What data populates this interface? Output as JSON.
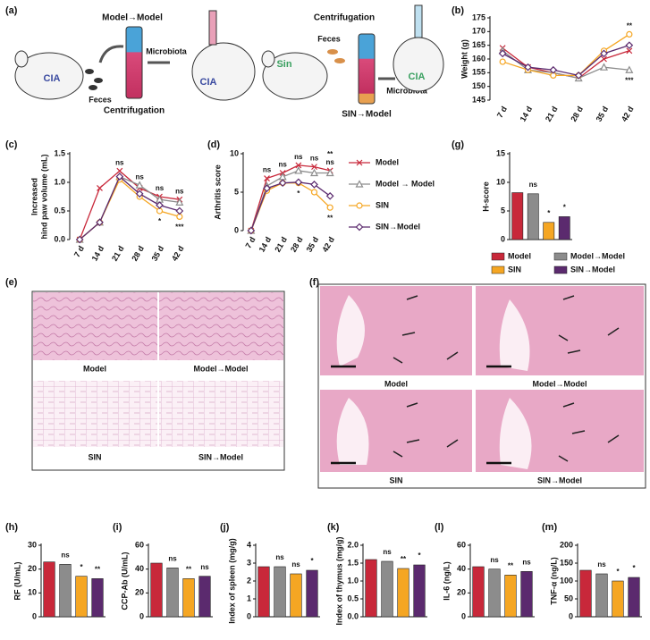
{
  "schematic": {
    "panel": "(a)",
    "left_title": "Model→Model",
    "left_feces": "Feces",
    "left_microbiota": "Microbiota",
    "left_centrifugation": "Centrifugation",
    "left_donor": "CIA",
    "left_recipient": "CIA",
    "right_title": "Centrifugation",
    "right_feces": "Feces",
    "right_microbiota": "Microbiota",
    "right_centrifugation": "SIN→Model",
    "right_donor": "Sin",
    "right_recipient": "CIA"
  },
  "images": {
    "e": {
      "panel": "(e)",
      "labels": [
        "Model",
        "Model→Model",
        "SIN",
        "SIN→Model"
      ]
    },
    "f": {
      "panel": "(f)",
      "labels": [
        "Model",
        "Model→Model",
        "SIN",
        "SIN→Model"
      ]
    }
  },
  "chart_data": [
    {
      "type": "line",
      "panel": "(b)",
      "ylabel": "Weight (g)",
      "categories": [
        "7 d",
        "14 d",
        "21 d",
        "28 d",
        "35 d",
        "42 d"
      ],
      "ylim": [
        145,
        175
      ],
      "yticks": [
        145,
        150,
        155,
        160,
        165,
        170,
        175
      ],
      "series": [
        {
          "name": "Model",
          "color": "#c8283a",
          "marker": "x",
          "values": [
            164,
            157,
            155,
            153,
            160,
            163
          ],
          "annotations": [
            null,
            null,
            null,
            null,
            null,
            null
          ]
        },
        {
          "name": "Model→Model",
          "color": "#8c8c8c",
          "marker": "triangle",
          "values": [
            163,
            156,
            155,
            153,
            157,
            156
          ],
          "annotations": [
            null,
            null,
            null,
            null,
            null,
            "***"
          ]
        },
        {
          "name": "SIN",
          "color": "#f5a623",
          "marker": "circle",
          "values": [
            159,
            156,
            154,
            154,
            163,
            169
          ],
          "annotations": [
            null,
            null,
            null,
            null,
            null,
            "**"
          ]
        },
        {
          "name": "SIN→Model",
          "color": "#5b2a6e",
          "marker": "diamond",
          "values": [
            162,
            157,
            156,
            154,
            162,
            165
          ],
          "annotations": [
            null,
            null,
            null,
            null,
            null,
            null
          ]
        }
      ]
    },
    {
      "type": "line",
      "panel": "(c)",
      "ylabel": [
        "Increased",
        "hind paw volume (mL)"
      ],
      "categories": [
        "7 d",
        "14 d",
        "21 d",
        "28 d",
        "35 d",
        "42 d"
      ],
      "ylim": [
        0,
        1.5
      ],
      "yticks": [
        {
          "value": 0,
          "label": "0.0"
        },
        0.5,
        {
          "value": 1,
          "label": "1.0"
        },
        1.5
      ],
      "series": [
        {
          "name": "Model",
          "color": "#c8283a",
          "marker": "x",
          "values": [
            0,
            0.9,
            1.2,
            0.9,
            0.75,
            0.7
          ],
          "annotations": [
            null,
            null,
            null,
            null,
            null,
            null
          ]
        },
        {
          "name": "Model→Model",
          "color": "#8c8c8c",
          "marker": "triangle",
          "values": [
            0,
            0.3,
            1.1,
            0.95,
            0.7,
            0.65
          ],
          "annotations": [
            null,
            null,
            "ns",
            "ns",
            "ns",
            "ns"
          ]
        },
        {
          "name": "SIN",
          "color": "#f5a623",
          "marker": "circle",
          "values": [
            0,
            0.3,
            1.05,
            0.75,
            0.5,
            0.4
          ],
          "annotations": [
            null,
            null,
            null,
            null,
            "*",
            "***"
          ]
        },
        {
          "name": "SIN→Model",
          "color": "#5b2a6e",
          "marker": "diamond",
          "values": [
            0,
            0.3,
            1.1,
            0.8,
            0.6,
            0.5
          ],
          "annotations": [
            null,
            null,
            null,
            null,
            null,
            null
          ]
        }
      ]
    },
    {
      "type": "line",
      "panel": "(d)",
      "ylabel": "Arthritis score",
      "categories": [
        "7 d",
        "14 d",
        "21 d",
        "28 d",
        "35 d",
        "42 d"
      ],
      "ylim": [
        0,
        10
      ],
      "yticks": [
        0,
        5,
        10
      ],
      "legend": true,
      "series": [
        {
          "name": "Model",
          "color": "#c8283a",
          "marker": "x",
          "values": [
            0,
            6.8,
            7.5,
            8.5,
            8.3,
            7.8
          ],
          "annotations": [
            null,
            null,
            null,
            null,
            null,
            null
          ]
        },
        {
          "name": "Model → Model",
          "color": "#8c8c8c",
          "marker": "triangle",
          "values": [
            0,
            5.8,
            7,
            7.8,
            7.5,
            7.5
          ],
          "annotations": [
            null,
            "ns",
            "ns",
            "ns",
            "ns",
            "ns"
          ]
        },
        {
          "name": "SIN",
          "color": "#f5a623",
          "marker": "circle",
          "values": [
            0,
            5.2,
            6.2,
            6.2,
            5,
            3
          ],
          "annotations": [
            null,
            null,
            null,
            "*",
            null,
            "**"
          ]
        },
        {
          "name": "SIN→Model",
          "color": "#5b2a6e",
          "marker": "diamond",
          "values": [
            0,
            5.5,
            6.2,
            6.3,
            6,
            4.5
          ],
          "annotations": [
            null,
            null,
            null,
            null,
            null,
            "**"
          ]
        }
      ]
    },
    {
      "type": "bar",
      "panel": "(g)",
      "ylabel": "H-score",
      "legend": true,
      "categories": [
        "Model",
        "Model→Model",
        "SIN",
        "SIN→Model"
      ],
      "colors": [
        "#c8283a",
        "#8c8c8c",
        "#f5a623",
        "#5b2a6e"
      ],
      "values": [
        8.2,
        8,
        3,
        4
      ],
      "annotations": [
        null,
        "ns",
        "*",
        "*"
      ],
      "ylim": [
        0,
        15
      ],
      "yticks": [
        0,
        5,
        10,
        15
      ]
    },
    {
      "type": "bar",
      "panel": "(h)",
      "ylabel": "RF (U/mL)",
      "categories": [
        "Model",
        "Model→Model",
        "SIN",
        "SIN→Model"
      ],
      "colors": [
        "#c8283a",
        "#8c8c8c",
        "#f5a623",
        "#5b2a6e"
      ],
      "values": [
        23,
        22,
        17,
        16
      ],
      "annotations": [
        null,
        "ns",
        "*",
        "**"
      ],
      "ylim": [
        0,
        30
      ],
      "yticks": [
        0,
        10,
        20,
        30
      ]
    },
    {
      "type": "bar",
      "panel": "(i)",
      "ylabel": "CCP-Ab (U/mL)",
      "categories": [
        "Model",
        "Model→Model",
        "SIN",
        "SIN→Model"
      ],
      "colors": [
        "#c8283a",
        "#8c8c8c",
        "#f5a623",
        "#5b2a6e"
      ],
      "values": [
        45,
        41,
        32,
        34
      ],
      "annotations": [
        null,
        "ns",
        "**",
        "ns"
      ],
      "ylim": [
        0,
        60
      ],
      "yticks": [
        0,
        20,
        40,
        60
      ]
    },
    {
      "type": "bar",
      "panel": "(j)",
      "ylabel": "Index of spleen (mg/g)",
      "categories": [
        "Model",
        "Model→Model",
        "SIN",
        "SIN→Model"
      ],
      "colors": [
        "#c8283a",
        "#8c8c8c",
        "#f5a623",
        "#5b2a6e"
      ],
      "values": [
        2.8,
        2.8,
        2.4,
        2.6
      ],
      "annotations": [
        null,
        "ns",
        "ns",
        "*"
      ],
      "ylim": [
        0,
        4
      ],
      "yticks": [
        0,
        1,
        2,
        3,
        4
      ]
    },
    {
      "type": "bar",
      "panel": "(k)",
      "ylabel": "Index of thymus (mg/g)",
      "categories": [
        "Model",
        "Model→Model",
        "SIN",
        "SIN→Model"
      ],
      "colors": [
        "#c8283a",
        "#8c8c8c",
        "#f5a623",
        "#5b2a6e"
      ],
      "values": [
        1.6,
        1.55,
        1.35,
        1.45
      ],
      "annotations": [
        null,
        "ns",
        "**",
        "*"
      ],
      "ylim": [
        0,
        2
      ],
      "yticks": [
        {
          "value": 0,
          "label": "0.0"
        },
        0.5,
        {
          "value": 1,
          "label": "1.0"
        },
        1.5,
        {
          "value": 2,
          "label": "2.0"
        }
      ]
    },
    {
      "type": "bar",
      "panel": "(l)",
      "ylabel": "IL-6 (ng/L)",
      "categories": [
        "Model",
        "Model→Model",
        "SIN",
        "SIN→Model"
      ],
      "colors": [
        "#c8283a",
        "#8c8c8c",
        "#f5a623",
        "#5b2a6e"
      ],
      "values": [
        42,
        40,
        35,
        38
      ],
      "annotations": [
        null,
        "ns",
        "**",
        "ns"
      ],
      "ylim": [
        0,
        60
      ],
      "yticks": [
        0,
        20,
        40,
        60
      ]
    },
    {
      "type": "bar",
      "panel": "(m)",
      "ylabel": "TNF-α (ng/L)",
      "categories": [
        "Model",
        "Model→Model",
        "SIN",
        "SIN→Model"
      ],
      "colors": [
        "#c8283a",
        "#8c8c8c",
        "#f5a623",
        "#5b2a6e"
      ],
      "values": [
        130,
        120,
        100,
        110
      ],
      "annotations": [
        null,
        "ns",
        "*",
        "*"
      ],
      "ylim": [
        0,
        200
      ],
      "yticks": [
        0,
        50,
        100,
        150,
        200
      ]
    }
  ]
}
